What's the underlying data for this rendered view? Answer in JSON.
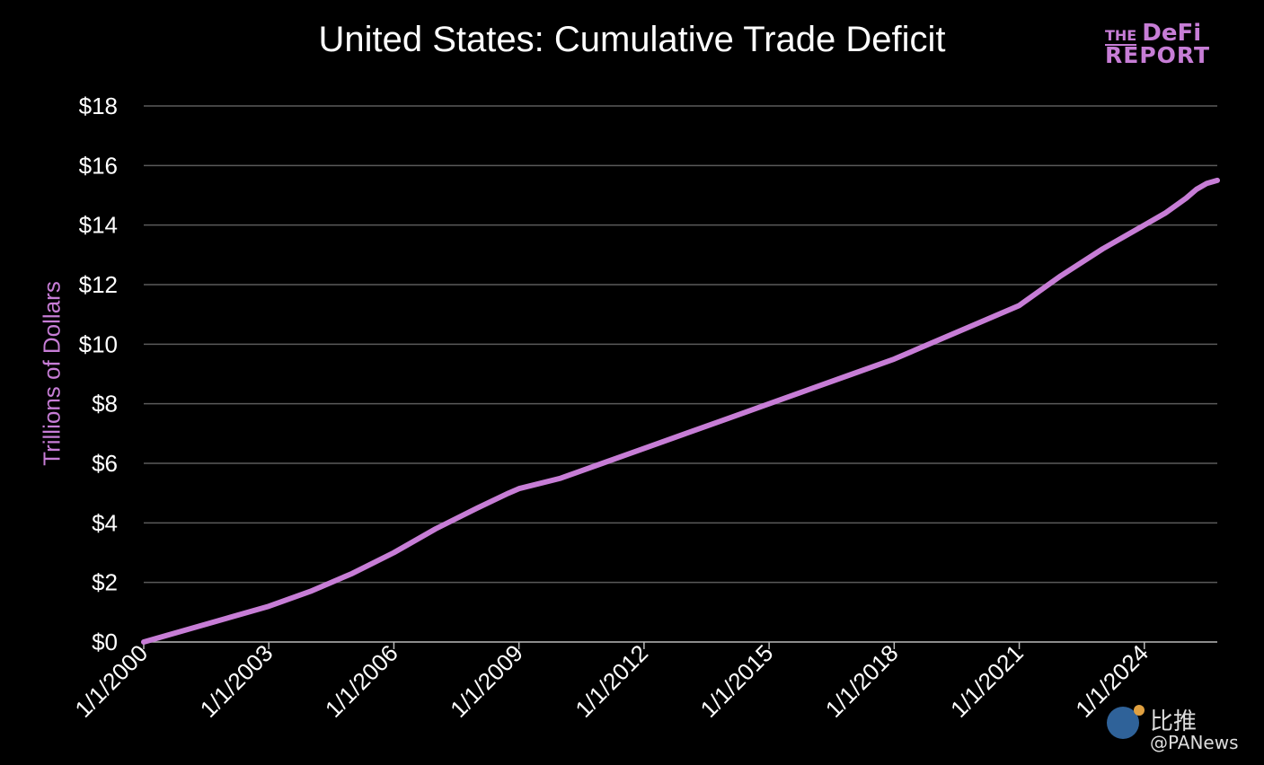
{
  "logo": {
    "line1_small": "THE",
    "line1_big": "DeFi",
    "line2": "REPORT",
    "color": "#c77dd6"
  },
  "watermark": {
    "cn": "比推",
    "en": "@PANews"
  },
  "chart_data": {
    "type": "line",
    "title": "United States: Cumulative Trade Deficit",
    "ylabel": "Trillions of Dollars",
    "xlabel": "",
    "ylim": [
      0,
      18
    ],
    "xlim": [
      2000.0,
      2025.75
    ],
    "yticks": [
      0,
      2,
      4,
      6,
      8,
      10,
      12,
      14,
      16,
      18
    ],
    "ytick_labels": [
      "$0",
      "$2",
      "$4",
      "$6",
      "$8",
      "$10",
      "$12",
      "$14",
      "$16",
      "$18"
    ],
    "xticks": [
      2000,
      2003,
      2006,
      2009,
      2012,
      2015,
      2018,
      2021,
      2024
    ],
    "xtick_labels": [
      "1/1/2000",
      "1/1/2003",
      "1/1/2006",
      "1/1/2009",
      "1/1/2012",
      "1/1/2015",
      "1/1/2018",
      "1/1/2021",
      "1/1/2024"
    ],
    "grid": true,
    "line_color": "#c77dd6",
    "series": [
      {
        "x": [
          2000,
          2001,
          2002,
          2003,
          2004,
          2005,
          2006,
          2007,
          2008,
          2008.75,
          2009,
          2010,
          2011,
          2012,
          2013,
          2014,
          2015,
          2016,
          2017,
          2018,
          2019,
          2020,
          2021,
          2022,
          2023,
          2024,
          2024.5,
          2025,
          2025.25,
          2025.5,
          2025.75
        ],
        "y": [
          0,
          0.4,
          0.8,
          1.2,
          1.7,
          2.3,
          3.0,
          3.8,
          4.5,
          5.0,
          5.15,
          5.5,
          6.0,
          6.5,
          7.0,
          7.5,
          8.0,
          8.5,
          9.0,
          9.5,
          10.1,
          10.7,
          11.3,
          12.3,
          13.2,
          14.0,
          14.4,
          14.9,
          15.2,
          15.4,
          15.5
        ]
      }
    ]
  }
}
